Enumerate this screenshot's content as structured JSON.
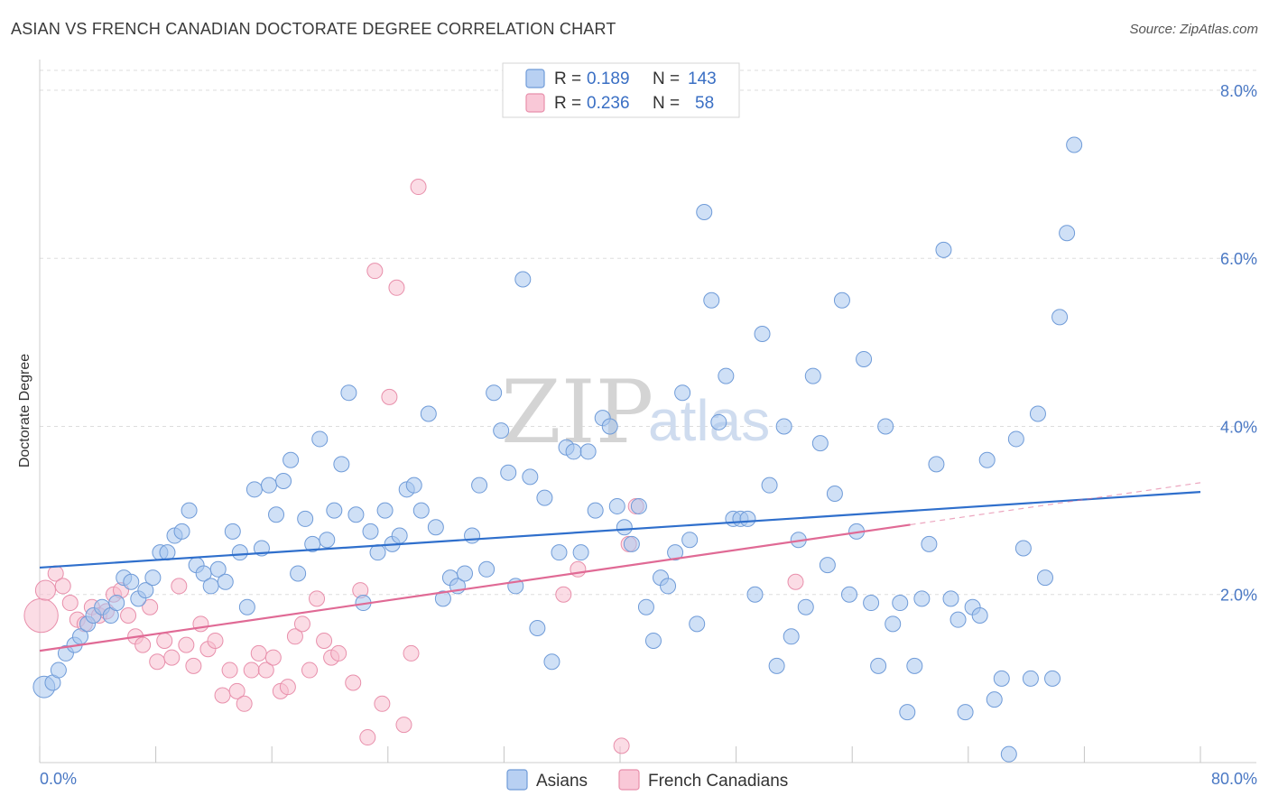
{
  "chart_data": {
    "type": "scatter",
    "title": "ASIAN VS FRENCH CANADIAN DOCTORATE DEGREE CORRELATION CHART",
    "source": "Source: ZipAtlas.com",
    "xlabel": "",
    "ylabel": "Doctorate Degree",
    "xlim": [
      0,
      80
    ],
    "ylim": [
      0,
      8.3
    ],
    "x_tick_labels": [
      "0.0%",
      "80.0%"
    ],
    "y_ticks": [
      2,
      4,
      6,
      8
    ],
    "y_tick_labels": [
      "2.0%",
      "4.0%",
      "6.0%",
      "8.0%"
    ],
    "legend_top": [
      {
        "r_label": "R =",
        "r_value": "0.189",
        "n_label": "N =",
        "n_value": "143"
      },
      {
        "r_label": "R =",
        "r_value": "0.236",
        "n_label": "N =",
        "n_value": "58"
      }
    ],
    "watermark": {
      "zip": "ZIP",
      "atlas": "atlas"
    },
    "series": [
      {
        "name": "Asians",
        "color": "#a8c6ee",
        "stroke": "#6f9bd8",
        "line_color": "#2f6fcc",
        "trend": {
          "x0": 0,
          "y0": 2.32,
          "x1": 80,
          "y1": 3.22
        },
        "points": [
          [
            0.3,
            0.9,
            1.4
          ],
          [
            0.9,
            0.95,
            1
          ],
          [
            1.3,
            1.1,
            1
          ],
          [
            1.8,
            1.3,
            1
          ],
          [
            2.4,
            1.4,
            1
          ],
          [
            2.8,
            1.5,
            1
          ],
          [
            3.3,
            1.65,
            1
          ],
          [
            3.7,
            1.75,
            1
          ],
          [
            4.3,
            1.85,
            1
          ],
          [
            4.9,
            1.75,
            1
          ],
          [
            5.3,
            1.9,
            1
          ],
          [
            5.8,
            2.2,
            1
          ],
          [
            6.3,
            2.15,
            1
          ],
          [
            6.8,
            1.95,
            1
          ],
          [
            7.3,
            2.05,
            1
          ],
          [
            7.8,
            2.2,
            1
          ],
          [
            8.3,
            2.5,
            1
          ],
          [
            8.8,
            2.5,
            1
          ],
          [
            9.3,
            2.7,
            1
          ],
          [
            9.8,
            2.75,
            1
          ],
          [
            10.3,
            3.0,
            1
          ],
          [
            10.8,
            2.35,
            1
          ],
          [
            11.3,
            2.25,
            1
          ],
          [
            11.8,
            2.1,
            1
          ],
          [
            12.3,
            2.3,
            1
          ],
          [
            12.8,
            2.15,
            1
          ],
          [
            13.3,
            2.75,
            1
          ],
          [
            13.8,
            2.5,
            1
          ],
          [
            14.3,
            1.85,
            1
          ],
          [
            14.8,
            3.25,
            1
          ],
          [
            15.3,
            2.55,
            1
          ],
          [
            15.8,
            3.3,
            1
          ],
          [
            16.3,
            2.95,
            1
          ],
          [
            16.8,
            3.35,
            1
          ],
          [
            17.3,
            3.6,
            1
          ],
          [
            17.8,
            2.25,
            1
          ],
          [
            18.3,
            2.9,
            1
          ],
          [
            18.8,
            2.6,
            1
          ],
          [
            19.3,
            3.85,
            1
          ],
          [
            19.8,
            2.65,
            1
          ],
          [
            20.3,
            3.0,
            1
          ],
          [
            20.8,
            3.55,
            1
          ],
          [
            21.3,
            4.4,
            1
          ],
          [
            21.8,
            2.95,
            1
          ],
          [
            22.3,
            1.9,
            1
          ],
          [
            22.8,
            2.75,
            1
          ],
          [
            23.3,
            2.5,
            1
          ],
          [
            23.8,
            3.0,
            1
          ],
          [
            24.3,
            2.6,
            1
          ],
          [
            24.8,
            2.7,
            1
          ],
          [
            25.3,
            3.25,
            1
          ],
          [
            25.8,
            3.3,
            1
          ],
          [
            26.3,
            3.0,
            1
          ],
          [
            26.8,
            4.15,
            1
          ],
          [
            27.3,
            2.8,
            1
          ],
          [
            27.8,
            1.95,
            1
          ],
          [
            28.3,
            2.2,
            1
          ],
          [
            28.8,
            2.1,
            1
          ],
          [
            29.3,
            2.25,
            1
          ],
          [
            29.8,
            2.7,
            1
          ],
          [
            30.3,
            3.3,
            1
          ],
          [
            30.8,
            2.3,
            1
          ],
          [
            31.3,
            4.4,
            1
          ],
          [
            31.8,
            3.95,
            1
          ],
          [
            32.3,
            3.45,
            1
          ],
          [
            32.8,
            2.1,
            1
          ],
          [
            33.3,
            5.75,
            1
          ],
          [
            33.8,
            3.4,
            1
          ],
          [
            34.3,
            1.6,
            1
          ],
          [
            34.8,
            3.15,
            1
          ],
          [
            35.3,
            1.2,
            1
          ],
          [
            35.8,
            2.5,
            1
          ],
          [
            36.3,
            3.75,
            1
          ],
          [
            36.8,
            3.7,
            1
          ],
          [
            37.3,
            2.5,
            1
          ],
          [
            37.8,
            3.7,
            1
          ],
          [
            38.3,
            3.0,
            1
          ],
          [
            38.8,
            4.1,
            1
          ],
          [
            39.3,
            4.0,
            1
          ],
          [
            39.8,
            3.05,
            1
          ],
          [
            40.3,
            2.8,
            1
          ],
          [
            40.8,
            2.6,
            1
          ],
          [
            41.3,
            3.05,
            1
          ],
          [
            41.8,
            1.85,
            1
          ],
          [
            42.3,
            1.45,
            1
          ],
          [
            42.8,
            2.2,
            1
          ],
          [
            43.3,
            2.1,
            1
          ],
          [
            43.8,
            2.5,
            1
          ],
          [
            44.3,
            4.4,
            1
          ],
          [
            44.8,
            2.65,
            1
          ],
          [
            45.3,
            1.65,
            1
          ],
          [
            45.8,
            6.55,
            1
          ],
          [
            46.3,
            5.5,
            1
          ],
          [
            46.8,
            4.05,
            1
          ],
          [
            47.3,
            4.6,
            1
          ],
          [
            47.8,
            2.9,
            1
          ],
          [
            48.3,
            2.9,
            1
          ],
          [
            48.8,
            2.9,
            1
          ],
          [
            49.3,
            2.0,
            1
          ],
          [
            49.8,
            5.1,
            1
          ],
          [
            50.3,
            3.3,
            1
          ],
          [
            50.8,
            1.15,
            1
          ],
          [
            51.3,
            4.0,
            1
          ],
          [
            51.8,
            1.5,
            1
          ],
          [
            52.3,
            2.65,
            1
          ],
          [
            52.8,
            1.85,
            1
          ],
          [
            53.3,
            4.6,
            1
          ],
          [
            53.8,
            3.8,
            1
          ],
          [
            54.3,
            2.35,
            1
          ],
          [
            54.8,
            3.2,
            1
          ],
          [
            55.3,
            5.5,
            1
          ],
          [
            55.8,
            2.0,
            1
          ],
          [
            56.3,
            2.75,
            1
          ],
          [
            56.8,
            4.8,
            1
          ],
          [
            57.3,
            1.9,
            1
          ],
          [
            57.8,
            1.15,
            1
          ],
          [
            58.3,
            4.0,
            1
          ],
          [
            58.8,
            1.65,
            1
          ],
          [
            59.3,
            1.9,
            1
          ],
          [
            59.8,
            0.6,
            1
          ],
          [
            60.3,
            1.15,
            1
          ],
          [
            60.8,
            1.95,
            1
          ],
          [
            61.3,
            2.6,
            1
          ],
          [
            61.8,
            3.55,
            1
          ],
          [
            62.3,
            6.1,
            1
          ],
          [
            62.8,
            1.95,
            1
          ],
          [
            63.3,
            1.7,
            1
          ],
          [
            63.8,
            0.6,
            1
          ],
          [
            64.3,
            1.85,
            1
          ],
          [
            64.8,
            1.75,
            1
          ],
          [
            65.3,
            3.6,
            1
          ],
          [
            65.8,
            0.75,
            1
          ],
          [
            66.3,
            1.0,
            1
          ],
          [
            66.8,
            0.1,
            1
          ],
          [
            67.3,
            3.85,
            1
          ],
          [
            67.8,
            2.55,
            1
          ],
          [
            68.3,
            1.0,
            1
          ],
          [
            68.8,
            4.15,
            1
          ],
          [
            69.3,
            2.2,
            1
          ],
          [
            69.8,
            1.0,
            1
          ],
          [
            70.3,
            5.3,
            1
          ],
          [
            70.8,
            6.3,
            1
          ],
          [
            71.3,
            7.35,
            1
          ]
        ]
      },
      {
        "name": "French Canadians",
        "color": "#f7bfd0",
        "stroke": "#e88fab",
        "line_color": "#e06a95",
        "trend": {
          "x0": 0,
          "y0": 1.33,
          "x1": 60,
          "y1": 2.83
        },
        "trend_dashed": {
          "x0": 60,
          "y0": 2.83,
          "x1": 80,
          "y1": 3.33
        },
        "points": [
          [
            0.1,
            1.75,
            2.2
          ],
          [
            0.4,
            2.05,
            1.3
          ],
          [
            1.1,
            2.25,
            1
          ],
          [
            1.6,
            2.1,
            1
          ],
          [
            2.1,
            1.9,
            1
          ],
          [
            2.6,
            1.7,
            1
          ],
          [
            3.1,
            1.65,
            1
          ],
          [
            3.6,
            1.85,
            1
          ],
          [
            4.1,
            1.75,
            1
          ],
          [
            4.6,
            1.8,
            1
          ],
          [
            5.1,
            2.0,
            1
          ],
          [
            5.6,
            2.05,
            1
          ],
          [
            6.1,
            1.75,
            1
          ],
          [
            6.6,
            1.5,
            1
          ],
          [
            7.1,
            1.4,
            1
          ],
          [
            7.6,
            1.85,
            1
          ],
          [
            8.1,
            1.2,
            1
          ],
          [
            8.6,
            1.45,
            1
          ],
          [
            9.1,
            1.25,
            1
          ],
          [
            9.6,
            2.1,
            1
          ],
          [
            10.1,
            1.4,
            1
          ],
          [
            10.6,
            1.15,
            1
          ],
          [
            11.1,
            1.65,
            1
          ],
          [
            11.6,
            1.35,
            1
          ],
          [
            12.1,
            1.45,
            1
          ],
          [
            12.6,
            0.8,
            1
          ],
          [
            13.1,
            1.1,
            1
          ],
          [
            13.6,
            0.85,
            1
          ],
          [
            14.1,
            0.7,
            1
          ],
          [
            14.6,
            1.1,
            1
          ],
          [
            15.1,
            1.3,
            1
          ],
          [
            15.6,
            1.1,
            1
          ],
          [
            16.1,
            1.25,
            1
          ],
          [
            16.6,
            0.85,
            1
          ],
          [
            17.1,
            0.9,
            1
          ],
          [
            17.6,
            1.5,
            1
          ],
          [
            18.1,
            1.65,
            1
          ],
          [
            18.6,
            1.1,
            1
          ],
          [
            19.1,
            1.95,
            1
          ],
          [
            19.6,
            1.45,
            1
          ],
          [
            20.1,
            1.25,
            1
          ],
          [
            20.6,
            1.3,
            1
          ],
          [
            21.6,
            0.95,
            1
          ],
          [
            22.1,
            2.05,
            1
          ],
          [
            22.6,
            0.3,
            1
          ],
          [
            23.1,
            5.85,
            1
          ],
          [
            23.6,
            0.7,
            1
          ],
          [
            24.1,
            4.35,
            1
          ],
          [
            24.6,
            5.65,
            1
          ],
          [
            25.1,
            0.45,
            1
          ],
          [
            25.6,
            1.3,
            1
          ],
          [
            26.1,
            6.85,
            1
          ],
          [
            36.1,
            2.0,
            1
          ],
          [
            37.1,
            2.3,
            1
          ],
          [
            40.1,
            0.2,
            1
          ],
          [
            40.6,
            2.6,
            1
          ],
          [
            41.1,
            3.05,
            1
          ],
          [
            52.1,
            2.15,
            1
          ]
        ]
      }
    ],
    "bottom_legend": [
      "Asians",
      "French Canadians"
    ]
  }
}
